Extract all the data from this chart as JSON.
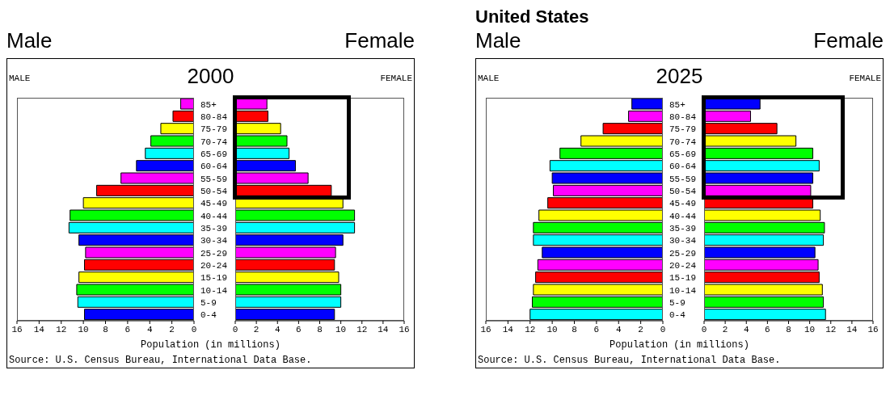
{
  "chart_data": [
    {
      "type": "bar",
      "orientation": "horizontal",
      "subtitle": "2000",
      "annotations": [
        "Male",
        "MALE"
      ],
      "xlabel": "Population (in millions)",
      "categories": [
        "85+",
        "80-84",
        "75-79",
        "70-74",
        "65-69",
        "60-64",
        "55-59",
        "50-54",
        "45-49",
        "40-44",
        "35-39",
        "30-34",
        "25-29",
        "20-24",
        "15-19",
        "10-14",
        "5-9",
        "0-4"
      ],
      "values": [
        1.2,
        1.9,
        3.0,
        3.9,
        4.4,
        5.2,
        6.6,
        8.8,
        10.0,
        11.2,
        11.3,
        10.4,
        9.8,
        9.9,
        10.4,
        10.6,
        10.5,
        9.9
      ],
      "colors": [
        "#ff00ff",
        "#ff0000",
        "#ffff00",
        "#00ff00",
        "#00ffff",
        "#0000ff",
        "#ff00ff",
        "#ff0000",
        "#ffff00",
        "#00ff00",
        "#00ffff",
        "#0000ff",
        "#ff00ff",
        "#ff0000",
        "#ffff00",
        "#00ff00",
        "#00ffff",
        "#0000ff"
      ],
      "xlim": [
        16,
        0
      ],
      "xticks": [
        16,
        14,
        12,
        10,
        8,
        6,
        4,
        2,
        0
      ]
    },
    {
      "type": "bar",
      "orientation": "horizontal",
      "annotations": [
        "Female",
        "FEMALE",
        "Source: U.S. Census Bureau, International Data Base."
      ],
      "categories": [
        null,
        null,
        null,
        null,
        null,
        null,
        null,
        null,
        null,
        null,
        null,
        null,
        null,
        null,
        null,
        null,
        null,
        null
      ],
      "values": [
        3.0,
        3.1,
        4.3,
        4.9,
        5.1,
        5.7,
        6.9,
        9.1,
        10.2,
        11.3,
        11.3,
        10.2,
        9.5,
        9.4,
        9.8,
        10.0,
        10.0,
        9.4
      ],
      "colors": [
        "#ff00ff",
        "#ff0000",
        "#ffff00",
        "#00ff00",
        "#00ffff",
        "#0000ff",
        "#ff00ff",
        "#ff0000",
        "#ffff00",
        "#00ff00",
        "#00ffff",
        "#0000ff",
        "#ff00ff",
        "#ff0000",
        "#ffff00",
        "#00ff00",
        "#00ffff",
        "#0000ff"
      ],
      "xlim": [
        0,
        16
      ],
      "xticks": [
        0,
        2,
        4,
        6,
        8,
        10,
        12,
        14,
        16
      ]
    },
    {
      "type": "bar",
      "orientation": "horizontal",
      "title": "United States",
      "subtitle": "2025",
      "annotations": [
        "Male",
        "MALE"
      ],
      "xlabel": "Population (in millions)",
      "categories": [
        "85+",
        "80-84",
        "75-79",
        "70-74",
        "65-69",
        "60-64",
        "55-59",
        "50-54",
        "45-49",
        "40-44",
        "35-39",
        "30-34",
        "25-29",
        "20-24",
        "15-19",
        "10-14",
        "5-9",
        "0-4"
      ],
      "values": [
        2.8,
        3.1,
        5.4,
        7.4,
        9.3,
        10.2,
        10.0,
        9.9,
        10.4,
        11.2,
        11.7,
        11.7,
        10.9,
        11.3,
        11.5,
        11.7,
        11.8,
        12.0
      ],
      "colors": [
        "#0000ff",
        "#ff00ff",
        "#ff0000",
        "#ffff00",
        "#00ff00",
        "#00ffff",
        "#0000ff",
        "#ff00ff",
        "#ff0000",
        "#ffff00",
        "#00ff00",
        "#00ffff",
        "#0000ff",
        "#ff00ff",
        "#ff0000",
        "#ffff00",
        "#00ff00",
        "#00ffff"
      ],
      "xlim": [
        16,
        0
      ],
      "xticks": [
        16,
        14,
        12,
        10,
        8,
        6,
        4,
        2,
        0
      ]
    },
    {
      "type": "bar",
      "orientation": "horizontal",
      "annotations": [
        "Female",
        "FEMALE",
        "Source: U.S. Census Bureau, International Data Base."
      ],
      "categories": [
        null,
        null,
        null,
        null,
        null,
        null,
        null,
        null,
        null,
        null,
        null,
        null,
        null,
        null,
        null,
        null,
        null,
        null
      ],
      "values": [
        5.3,
        4.4,
        6.9,
        8.7,
        10.3,
        10.9,
        10.3,
        10.1,
        10.3,
        11.0,
        11.4,
        11.3,
        10.5,
        10.8,
        10.9,
        11.2,
        11.3,
        11.5
      ],
      "colors": [
        "#0000ff",
        "#ff00ff",
        "#ff0000",
        "#ffff00",
        "#00ff00",
        "#00ffff",
        "#0000ff",
        "#ff00ff",
        "#ff0000",
        "#ffff00",
        "#00ff00",
        "#00ffff",
        "#0000ff",
        "#ff00ff",
        "#ff0000",
        "#ffff00",
        "#00ff00",
        "#00ffff"
      ],
      "xlim": [
        0,
        16
      ],
      "xticks": [
        0,
        2,
        4,
        6,
        8,
        10,
        12,
        14,
        16
      ]
    }
  ]
}
